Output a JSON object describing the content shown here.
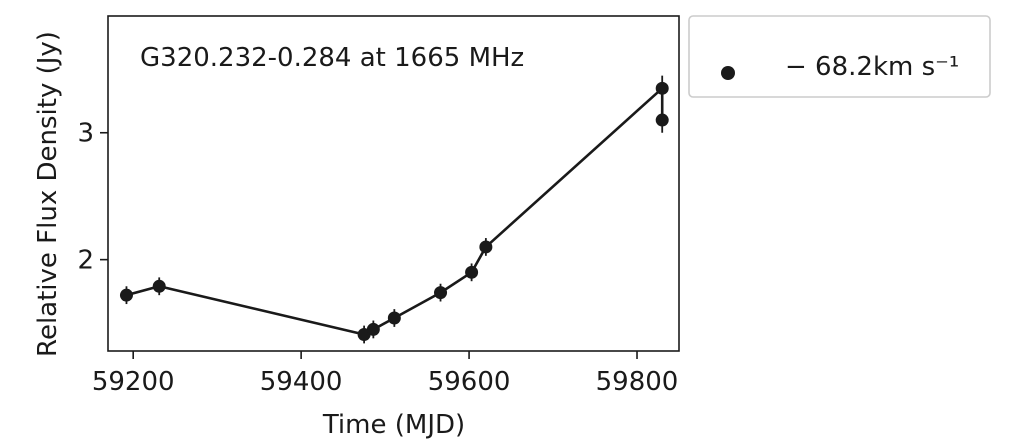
{
  "chart_data": {
    "type": "scatter",
    "annotation": "G320.232-0.284 at 1665 MHz",
    "xlabel": "Time (MJD)",
    "ylabel": "Relative Flux Density (Jy)",
    "xlim": [
      59170,
      59850
    ],
    "ylim": [
      1.28,
      3.92
    ],
    "xticks": [
      59200,
      59400,
      59600,
      59800
    ],
    "yticks": [
      2,
      3
    ],
    "xtick_labels": [
      "59200",
      "59400",
      "59600",
      "59800"
    ],
    "ytick_labels": [
      "2",
      "3"
    ],
    "grid": false,
    "legend_position": "outside-right",
    "series": [
      {
        "name": "− 68.2km s⁻¹",
        "color": "#1a1a1a",
        "connected": true,
        "x": [
          59192,
          59231,
          59475,
          59486,
          59511,
          59566,
          59603,
          59620,
          59830,
          59830
        ],
        "y": [
          1.72,
          1.79,
          1.41,
          1.45,
          1.54,
          1.74,
          1.9,
          2.1,
          3.35,
          3.1
        ],
        "yerr": [
          0.07,
          0.07,
          0.07,
          0.07,
          0.07,
          0.07,
          0.07,
          0.07,
          0.1,
          0.1
        ]
      }
    ]
  }
}
